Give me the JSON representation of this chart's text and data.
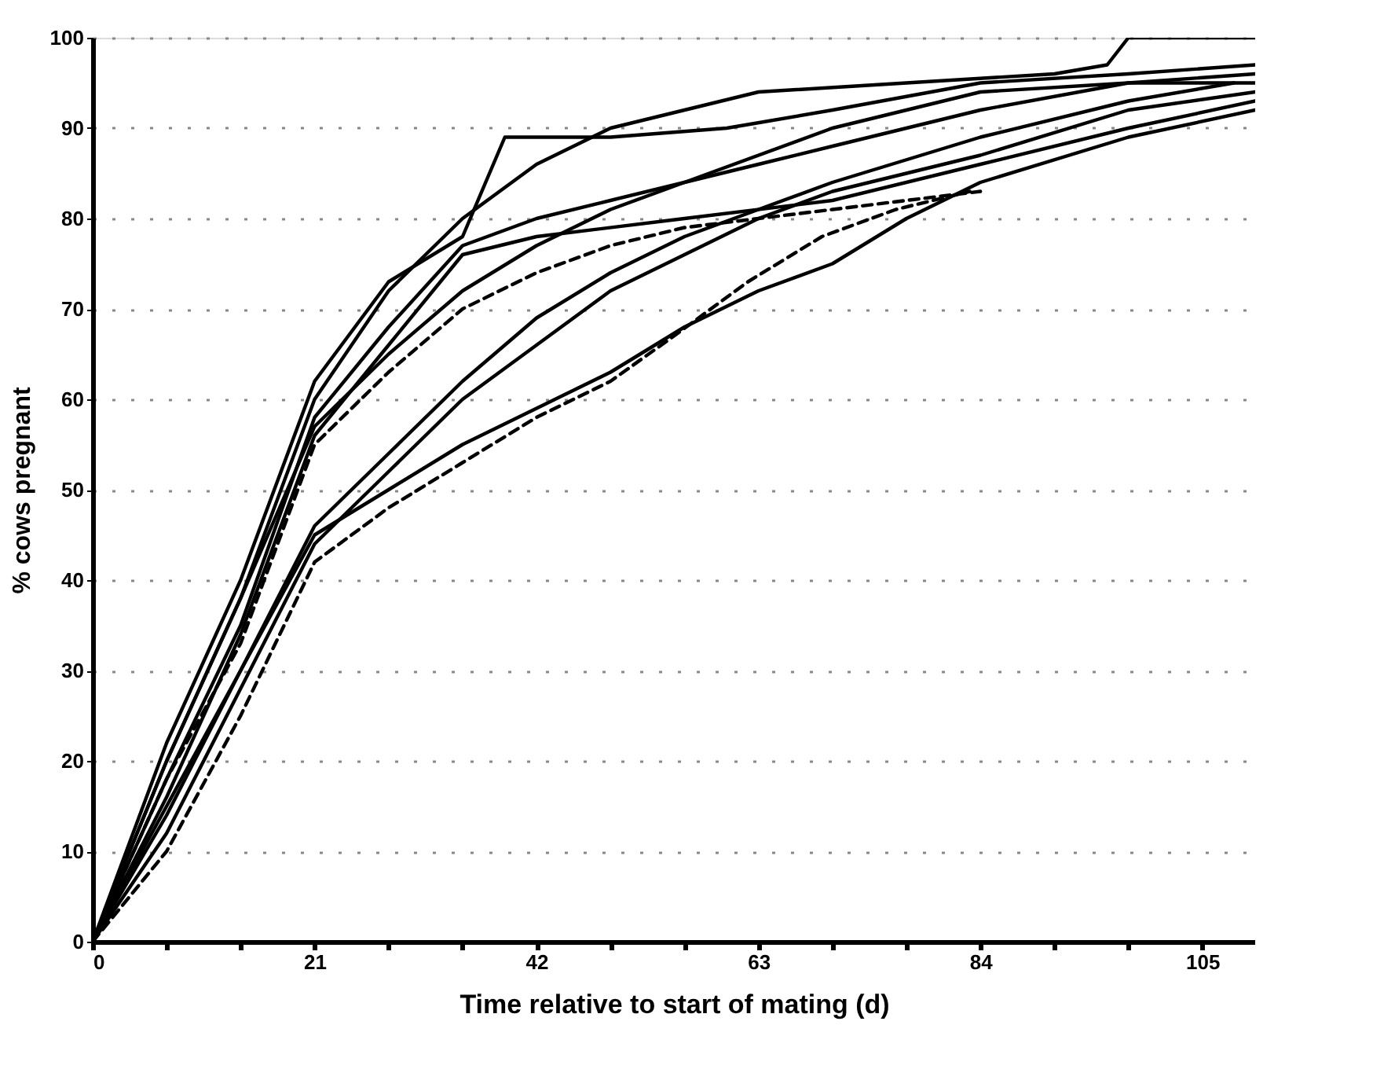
{
  "chart_data": {
    "type": "line",
    "xlabel": "Time relative to start of mating (d)",
    "ylabel": "% cows pregnant",
    "xlim": [
      0,
      110
    ],
    "ylim": [
      0,
      100
    ],
    "xticks": [
      0,
      {
        "value": 7,
        "label": null
      },
      {
        "value": 14,
        "label": null
      },
      21,
      {
        "value": 28,
        "label": null
      },
      {
        "value": 35,
        "label": null
      },
      42,
      {
        "value": 49,
        "label": null
      },
      {
        "value": 56,
        "label": null
      },
      63,
      {
        "value": 70,
        "label": null
      },
      {
        "value": 77,
        "label": null
      },
      84,
      {
        "value": 91,
        "label": null
      },
      {
        "value": 98,
        "label": null
      },
      105
    ],
    "yticks": [
      0,
      10,
      20,
      30,
      40,
      50,
      60,
      70,
      80,
      90,
      100
    ],
    "grid": "y",
    "marker": "none",
    "series": [
      {
        "color": "#000000",
        "line_style": "solid",
        "x": [
          0,
          7,
          14,
          21,
          28,
          35,
          42,
          49,
          56,
          63,
          77,
          91,
          96,
          98,
          110
        ],
        "values": [
          0,
          20,
          38,
          60,
          72,
          80,
          86,
          90,
          92,
          94,
          95,
          96,
          97,
          100,
          100
        ]
      },
      {
        "color": "#000000",
        "line_style": "solid",
        "x": [
          0,
          7,
          14,
          21,
          28,
          35,
          42,
          49,
          56,
          63,
          70,
          84,
          98,
          110
        ],
        "values": [
          0,
          18,
          35,
          58,
          68,
          77,
          80,
          82,
          84,
          86,
          88,
          92,
          95,
          96
        ]
      },
      {
        "color": "#000000",
        "line_style": "solid",
        "x": [
          0,
          7,
          14,
          21,
          28,
          35,
          42,
          49,
          56,
          70,
          84,
          98,
          110
        ],
        "values": [
          0,
          20,
          38,
          57,
          65,
          72,
          77,
          81,
          84,
          90,
          94,
          95,
          95
        ]
      },
      {
        "color": "#000000",
        "line_style": "solid",
        "x": [
          0,
          7,
          14,
          21,
          28,
          35,
          42,
          49,
          56,
          63,
          70,
          77,
          84,
          98,
          110
        ],
        "values": [
          0,
          15,
          30,
          45,
          50,
          55,
          59,
          63,
          68,
          72,
          75,
          80,
          84,
          89,
          92
        ]
      },
      {
        "color": "#000000",
        "line_style": "solid",
        "x": [
          0,
          7,
          14,
          21,
          28,
          35,
          42,
          49,
          56,
          63,
          70,
          84,
          98,
          110
        ],
        "values": [
          0,
          12,
          28,
          44,
          52,
          60,
          66,
          72,
          76,
          80,
          83,
          87,
          92,
          94
        ]
      },
      {
        "color": "#000000",
        "line_style": "solid",
        "x": [
          0,
          7,
          14,
          21,
          28,
          35,
          42,
          49,
          56,
          63,
          70,
          84,
          98,
          108
        ],
        "values": [
          0,
          14,
          30,
          46,
          54,
          62,
          69,
          74,
          78,
          81,
          84,
          89,
          93,
          95
        ]
      },
      {
        "color": "#000000",
        "line_style": "dashed",
        "x": [
          0,
          7,
          14,
          21,
          28,
          35,
          42,
          49,
          56,
          63,
          70,
          77,
          84
        ],
        "values": [
          0,
          18,
          33,
          55,
          63,
          70,
          74,
          77,
          79,
          80,
          81,
          82,
          83
        ]
      },
      {
        "color": "#000000",
        "line_style": "solid",
        "x": [
          0,
          7,
          14,
          21,
          28,
          35,
          39,
          49,
          60,
          70,
          84,
          98,
          110
        ],
        "values": [
          0,
          22,
          40,
          62,
          73,
          78,
          89,
          89,
          90,
          92,
          95,
          96,
          97
        ]
      },
      {
        "color": "#000000",
        "line_style": "dashed",
        "x": [
          0,
          7,
          14,
          21,
          28,
          35,
          42,
          49,
          55,
          62,
          69,
          76,
          83
        ],
        "values": [
          0,
          10,
          25,
          42,
          48,
          53,
          58,
          62,
          67,
          73,
          78,
          81,
          83
        ]
      },
      {
        "color": "#000000",
        "line_style": "solid",
        "x": [
          0,
          7,
          14,
          21,
          28,
          35,
          42,
          56,
          70,
          84,
          98,
          110
        ],
        "values": [
          0,
          16,
          34,
          56,
          66,
          76,
          78,
          80,
          82,
          86,
          90,
          93
        ]
      }
    ]
  }
}
